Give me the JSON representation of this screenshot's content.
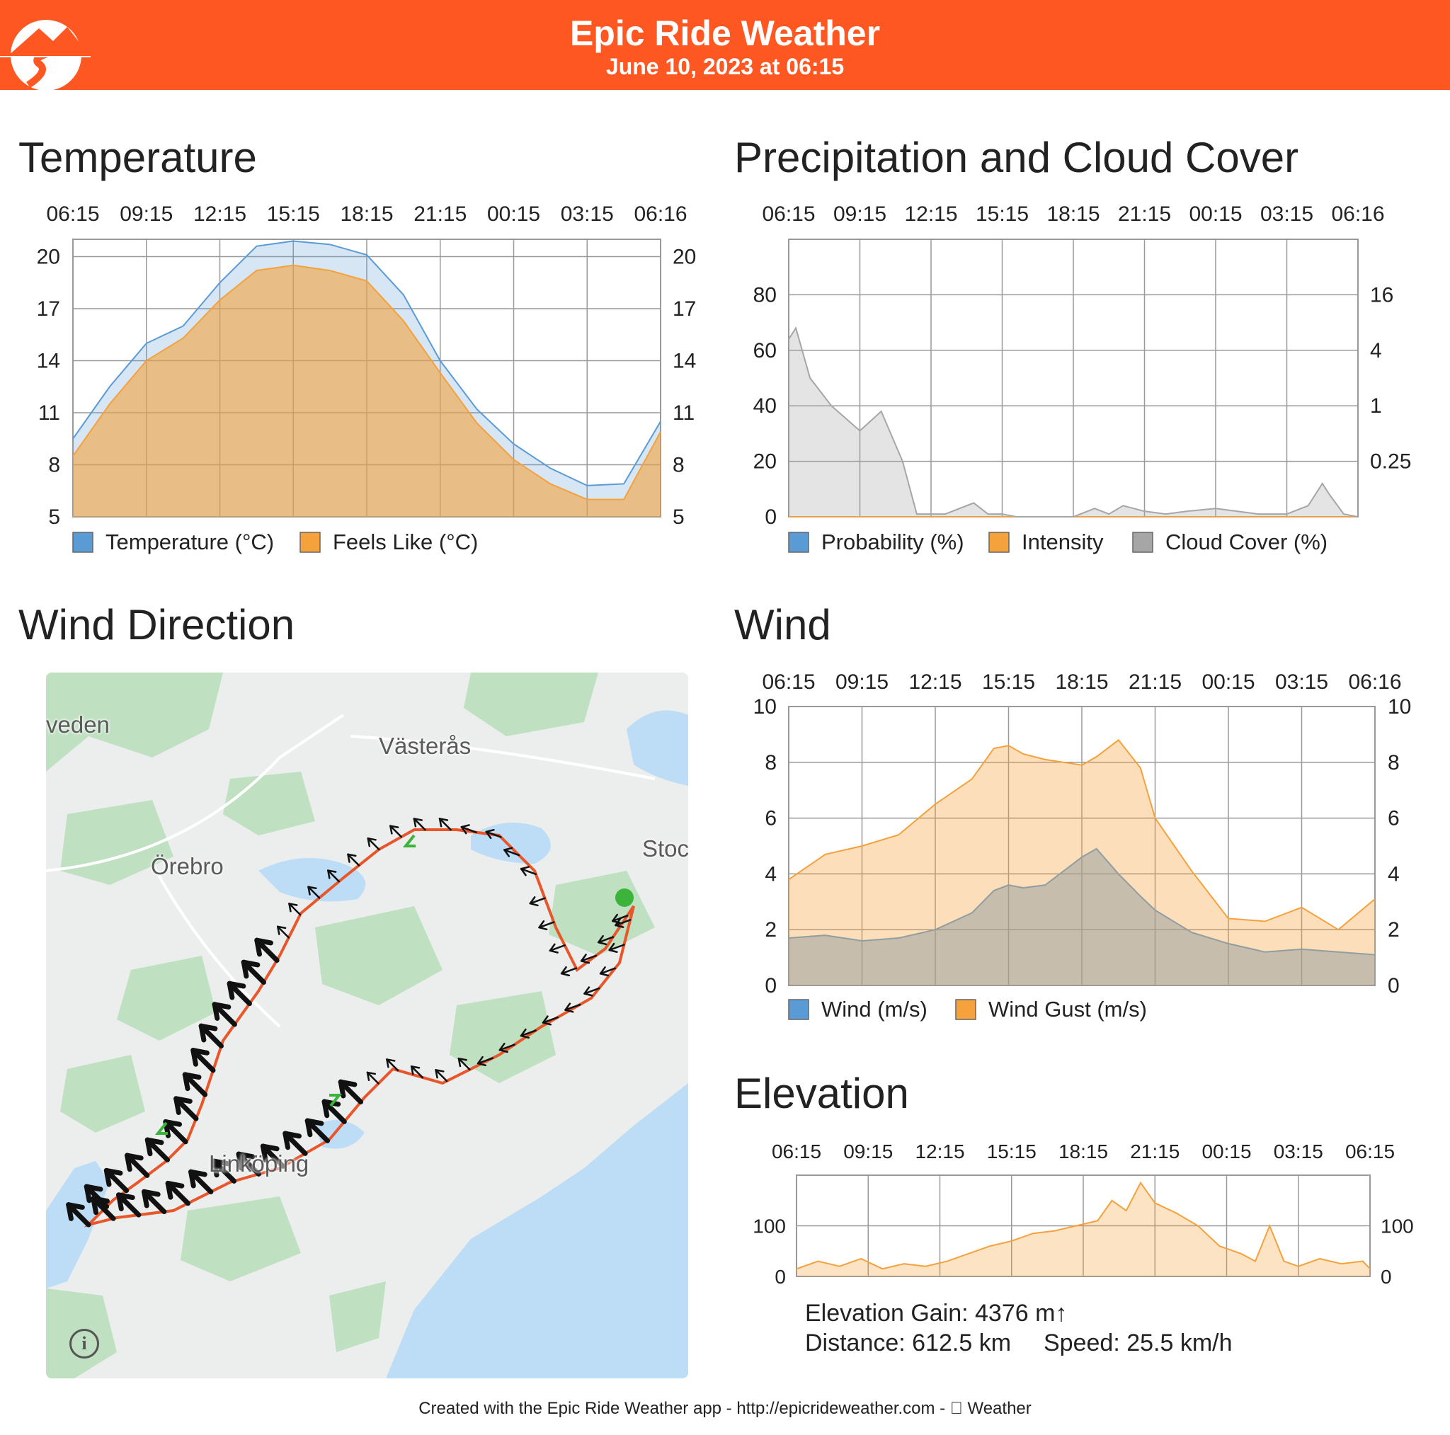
{
  "header": {
    "title": "Epic Ride Weather",
    "subtitle": "June 10, 2023 at 06:15",
    "color": "#ff5722"
  },
  "sections": {
    "temperature": "Temperature",
    "precipitation": "Precipitation and Cloud Cover",
    "wind_direction": "Wind Direction",
    "wind": "Wind",
    "elevation": "Elevation"
  },
  "chart_data": [
    {
      "id": "temperature",
      "type": "area",
      "title": "Temperature",
      "x_ticks": [
        "06:15",
        "09:15",
        "12:15",
        "15:15",
        "18:15",
        "21:15",
        "00:15",
        "03:15",
        "06:16"
      ],
      "y_ticks": [
        5,
        8,
        11,
        14,
        17,
        20
      ],
      "ylim": [
        5,
        21
      ],
      "grid": true,
      "legend_position": "bottom",
      "x": [
        0,
        0.5,
        1,
        1.5,
        2,
        2.5,
        3,
        3.5,
        4,
        4.5,
        5,
        5.5,
        6,
        6.5,
        7,
        7.5,
        8
      ],
      "series": [
        {
          "name": "Temperature (°C)",
          "color": "#5b9bd5",
          "values": [
            9.5,
            12.5,
            15,
            16,
            18.5,
            20.6,
            20.9,
            20.7,
            20.1,
            17.8,
            14,
            11.2,
            9.2,
            7.8,
            6.8,
            6.9,
            10.5
          ]
        },
        {
          "name": "Feels Like (°C)",
          "color": "#f5a13c",
          "values": [
            8.5,
            11.5,
            14,
            15.3,
            17.5,
            19.2,
            19.5,
            19.2,
            18.6,
            16.3,
            13.3,
            10.4,
            8.3,
            6.9,
            6.0,
            6.0,
            9.9
          ]
        }
      ]
    },
    {
      "id": "precipitation",
      "type": "area",
      "title": "Precipitation and Cloud Cover",
      "x_ticks": [
        "06:15",
        "09:15",
        "12:15",
        "15:15",
        "18:15",
        "21:15",
        "00:15",
        "03:15",
        "06:16"
      ],
      "y_ticks": [
        0,
        20,
        40,
        60,
        80
      ],
      "y2_ticks": [
        "0.25",
        "1",
        "4",
        "16"
      ],
      "ylim": [
        0,
        100
      ],
      "grid": true,
      "legend_position": "bottom",
      "x": [
        0,
        0.1,
        0.3,
        0.6,
        1,
        1.3,
        1.6,
        1.8,
        2.2,
        2.6,
        2.8,
        3,
        3.2,
        4,
        4.3,
        4.5,
        4.7,
        5,
        5.3,
        5.6,
        6,
        6.3,
        6.6,
        7,
        7.3,
        7.5,
        7.6,
        7.8,
        8
      ],
      "series": [
        {
          "name": "Probability (%)",
          "color": "#5b9bd5",
          "values": [
            0,
            0,
            0,
            0,
            0,
            0,
            0,
            0,
            0,
            0,
            0,
            0,
            0,
            0,
            0,
            0,
            0,
            0,
            0,
            0,
            0,
            0,
            0,
            0,
            0,
            0,
            0,
            0,
            0
          ]
        },
        {
          "name": "Intensity",
          "color": "#f5a13c",
          "values": [
            0,
            0,
            0,
            0,
            0,
            0,
            0,
            0,
            0,
            0,
            0,
            0,
            0,
            0,
            0,
            0,
            0,
            0,
            0,
            0,
            0,
            0,
            0,
            0,
            0,
            0,
            0,
            0,
            0
          ]
        },
        {
          "name": "Cloud Cover (%)",
          "color": "#a6a6a6",
          "values": [
            64,
            68,
            50,
            40,
            31,
            38,
            20,
            1,
            1,
            5,
            1,
            1,
            0,
            0,
            3,
            1,
            4,
            2,
            1,
            2,
            3,
            2,
            1,
            1,
            4,
            12,
            8,
            1,
            0
          ]
        }
      ]
    },
    {
      "id": "wind",
      "type": "area",
      "title": "Wind",
      "x_ticks": [
        "06:15",
        "09:15",
        "12:15",
        "15:15",
        "18:15",
        "21:15",
        "00:15",
        "03:15",
        "06:16"
      ],
      "y_ticks": [
        0,
        2,
        4,
        6,
        8,
        10
      ],
      "ylim": [
        0,
        10
      ],
      "grid": true,
      "legend_position": "bottom",
      "x": [
        0,
        0.5,
        1,
        1.5,
        2,
        2.5,
        2.8,
        3,
        3.2,
        3.5,
        4,
        4.2,
        4.5,
        4.8,
        5,
        5.5,
        6,
        6.5,
        7,
        7.5,
        8
      ],
      "series": [
        {
          "name": "Wind (m/s)",
          "color": "#5b9bd5",
          "values": [
            1.7,
            1.8,
            1.6,
            1.7,
            2.0,
            2.6,
            3.4,
            3.6,
            3.5,
            3.6,
            4.6,
            4.9,
            4.0,
            3.2,
            2.7,
            1.9,
            1.5,
            1.2,
            1.3,
            1.2,
            1.1
          ]
        },
        {
          "name": "Wind Gust (m/s)",
          "color": "#f5a13c",
          "values": [
            3.8,
            4.7,
            5.0,
            5.4,
            6.5,
            7.4,
            8.5,
            8.6,
            8.3,
            8.1,
            7.9,
            8.2,
            8.8,
            7.8,
            6.0,
            4.1,
            2.4,
            2.3,
            2.8,
            2.0,
            3.1
          ]
        }
      ]
    },
    {
      "id": "elevation",
      "type": "area",
      "title": "Elevation",
      "x_ticks": [
        "06:15",
        "09:15",
        "12:15",
        "15:15",
        "18:15",
        "21:15",
        "00:15",
        "03:15",
        "06:15"
      ],
      "y_ticks": [
        0,
        100
      ],
      "ylim": [
        0,
        200
      ],
      "grid": true,
      "x": [
        0,
        0.3,
        0.6,
        0.9,
        1.2,
        1.5,
        1.8,
        2.1,
        2.4,
        2.7,
        3.0,
        3.3,
        3.6,
        3.9,
        4.2,
        4.4,
        4.6,
        4.8,
        5.0,
        5.3,
        5.6,
        5.9,
        6.2,
        6.4,
        6.6,
        6.8,
        7.0,
        7.3,
        7.6,
        7.9,
        8.0
      ],
      "series": [
        {
          "name": "Elevation",
          "color": "#f5a13c",
          "values": [
            15,
            30,
            20,
            35,
            15,
            25,
            20,
            30,
            45,
            60,
            70,
            85,
            90,
            100,
            110,
            150,
            130,
            185,
            145,
            125,
            100,
            60,
            45,
            30,
            100,
            30,
            20,
            35,
            25,
            30,
            15
          ]
        }
      ]
    }
  ],
  "legends": {
    "temperature": [
      "Temperature (°C)",
      "Feels Like (°C)"
    ],
    "precipitation": [
      "Probability (%)",
      "Intensity",
      "Cloud Cover (%)"
    ],
    "wind": [
      "Wind (m/s)",
      "Wind Gust (m/s)"
    ]
  },
  "map": {
    "labels": {
      "sweden": "veden",
      "vasteras": "Västerås",
      "orebro": "Örebro",
      "stockholm": "Stoc",
      "linkoping": "Linköping"
    },
    "info_icon": "i",
    "route_color": "#e8562a",
    "water_color": "#bddcf5",
    "land_color": "#eceeed",
    "forest_color": "#bfe0c1"
  },
  "stats": {
    "elevation_gain": "Elevation Gain: 4376 m↑",
    "distance": "Distance: 612.5 km",
    "speed": "Speed: 25.5 km/h"
  },
  "footer": "Created with the Epic Ride Weather app - http://epicrideweather.com -  Weather"
}
